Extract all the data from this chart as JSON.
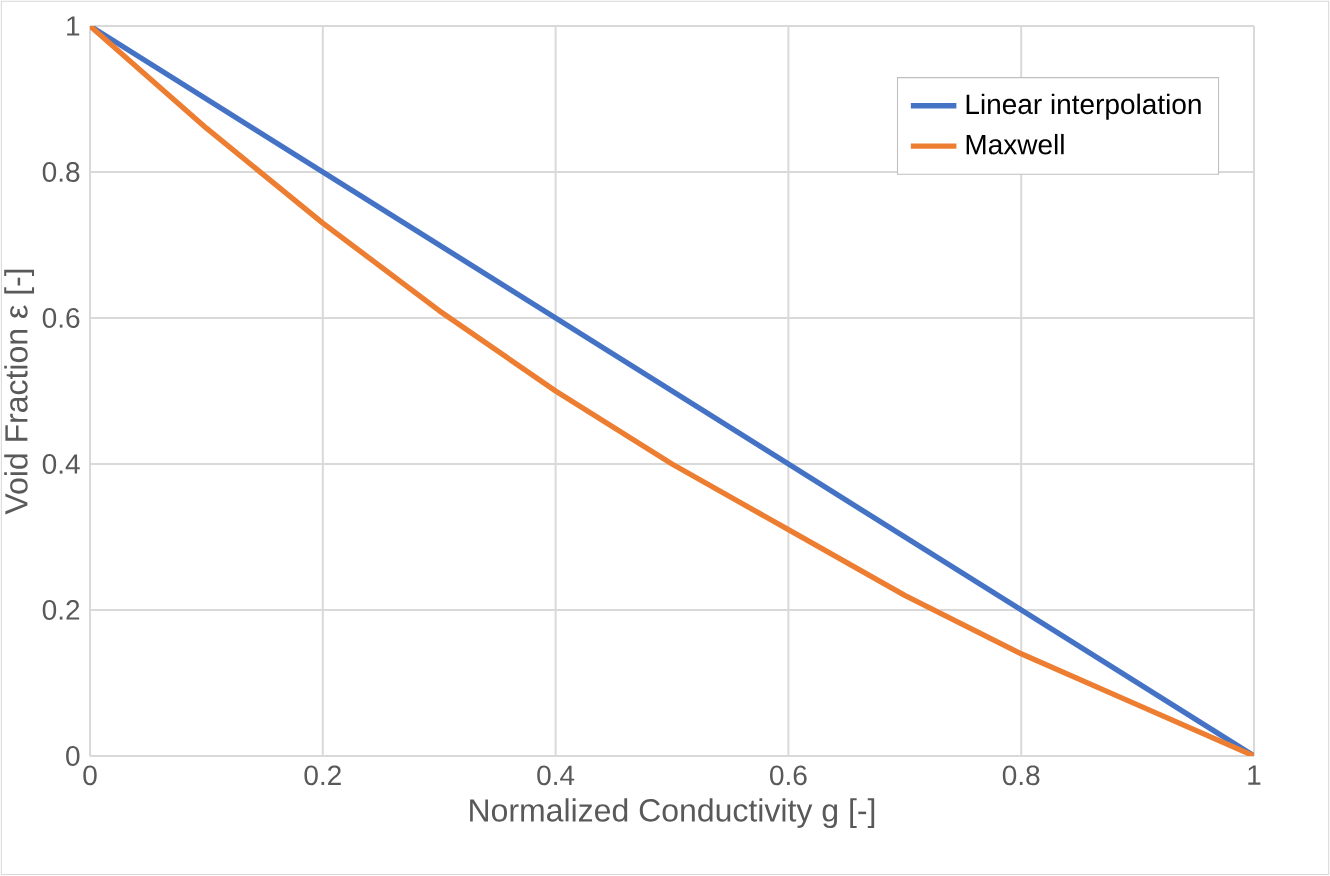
{
  "chart_data": {
    "type": "line",
    "xlabel": "Normalized Conductivity g [-]",
    "ylabel": "Void Fraction ε [-]",
    "xlim": [
      0,
      1
    ],
    "ylim": [
      0,
      1
    ],
    "xticks": [
      0,
      0.2,
      0.4,
      0.6,
      0.8,
      1
    ],
    "yticks": [
      0,
      0.2,
      0.4,
      0.6,
      0.8,
      1
    ],
    "grid": true,
    "legend": "top right",
    "series": [
      {
        "name": "Linear interpolation",
        "color": "#4472c4",
        "x": [
          0,
          1
        ],
        "values": [
          1,
          0
        ]
      },
      {
        "name": "Maxwell",
        "color": "#ed7d31",
        "x": [
          0,
          0.1,
          0.2,
          0.3,
          0.4,
          0.5,
          0.6,
          0.7,
          0.8,
          0.9,
          1
        ],
        "values": [
          1,
          0.86,
          0.73,
          0.61,
          0.5,
          0.4,
          0.31,
          0.22,
          0.14,
          0.07,
          0
        ]
      }
    ]
  }
}
